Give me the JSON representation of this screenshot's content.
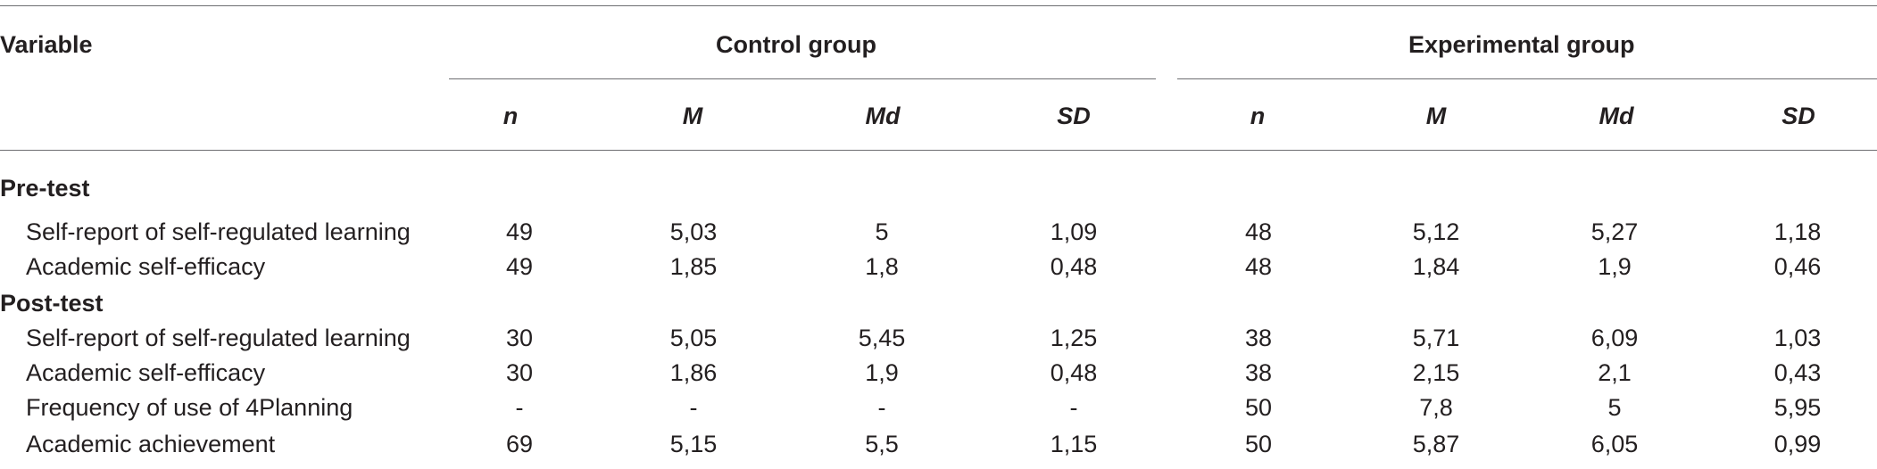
{
  "table": {
    "header": {
      "variable": "Variable",
      "groups": [
        "Control group",
        "Experimental group"
      ],
      "stats": [
        "n",
        "M",
        "Md",
        "SD",
        "n",
        "M",
        "Md",
        "SD"
      ]
    },
    "sections": [
      {
        "label": "Pre-test",
        "rows": [
          {
            "variable": "Self-report of self-regulated learning",
            "values": [
              "49",
              "5,03",
              "5",
              "1,09",
              "48",
              "5,12",
              "5,27",
              "1,18"
            ]
          },
          {
            "variable": "Academic self-efficacy",
            "values": [
              "49",
              "1,85",
              "1,8",
              "0,48",
              "48",
              "1,84",
              "1,9",
              "0,46"
            ]
          }
        ]
      },
      {
        "label": "Post-test",
        "rows": [
          {
            "variable": "Self-report of self-regulated learning",
            "values": [
              "30",
              "5,05",
              "5,45",
              "1,25",
              "38",
              "5,71",
              "6,09",
              "1,03"
            ]
          },
          {
            "variable": "Academic self-efficacy",
            "values": [
              "30",
              "1,86",
              "1,9",
              "0,48",
              "38",
              "2,15",
              "2,1",
              "0,43"
            ]
          },
          {
            "variable": "Frequency of use of 4Planning",
            "values": [
              "-",
              "-",
              "-",
              "-",
              "50",
              "7,8",
              "5",
              "5,95"
            ]
          },
          {
            "variable": "Academic achievement",
            "values": [
              "69",
              "5,15",
              "5,5",
              "1,15",
              "50",
              "5,87",
              "6,05",
              "0,99"
            ]
          }
        ]
      }
    ]
  }
}
